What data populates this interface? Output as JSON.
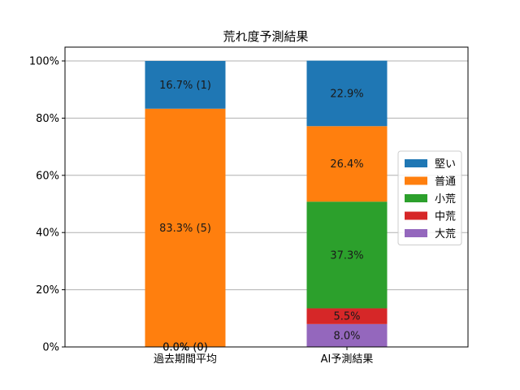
{
  "chart_data": {
    "type": "bar",
    "stacked": true,
    "title": "荒れ度予測結果",
    "xlabel": "",
    "ylabel": "",
    "ylim": [
      0,
      100
    ],
    "y_ticks": [
      "0%",
      "20%",
      "40%",
      "60%",
      "80%",
      "100%"
    ],
    "grid": "horizontal",
    "legend_position": "right",
    "categories": [
      "過去期間平均",
      "AI予測結果"
    ],
    "series": [
      {
        "name": "大荒",
        "color": "#9467bd",
        "values": [
          0.0,
          8.0
        ],
        "labels": [
          "0.0% (0)",
          "8.0%"
        ]
      },
      {
        "name": "中荒",
        "color": "#d62728",
        "values": [
          0.0,
          5.5
        ],
        "labels": [
          "0.0% (0)",
          "5.5%"
        ]
      },
      {
        "name": "小荒",
        "color": "#2ca02c",
        "values": [
          0.0,
          37.3
        ],
        "labels": [
          "0.0% (0)",
          "37.3%"
        ]
      },
      {
        "name": "普通",
        "color": "#ff7f0e",
        "values": [
          83.3,
          26.4
        ],
        "labels": [
          "83.3% (5)",
          "26.4%"
        ]
      },
      {
        "name": "堅い",
        "color": "#1f77b4",
        "values": [
          16.7,
          22.9
        ],
        "labels": [
          "16.7% (1)",
          "22.9%"
        ]
      }
    ],
    "legend_order": [
      "堅い",
      "普通",
      "小荒",
      "中荒",
      "大荒"
    ]
  }
}
